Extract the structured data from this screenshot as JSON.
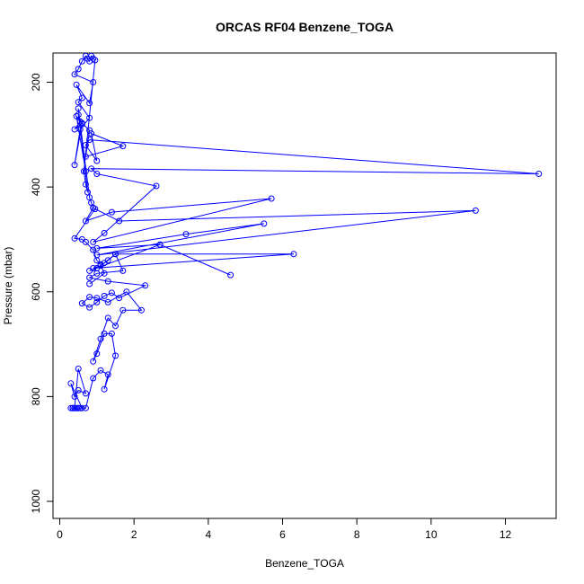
{
  "chart_data": {
    "type": "line",
    "title": "ORCAS RF04 Benzene_TOGA",
    "xlabel": "Benzene_TOGA",
    "ylabel": "Pressure (mbar)",
    "xlim": [
      0,
      13
    ],
    "ylim": [
      150,
      1030
    ],
    "y_reversed": true,
    "xticks": [
      0,
      2,
      4,
      6,
      8,
      10,
      12
    ],
    "yticks": [
      200,
      400,
      600,
      800,
      1000
    ],
    "grid": false,
    "color": "#0000ff",
    "series": [
      {
        "x": [
          0.3,
          0.35,
          0.4,
          0.45,
          0.5,
          0.55,
          0.6,
          0.3,
          0.4,
          0.5,
          0.7,
          0.5,
          0.4,
          0.35,
          0.5,
          0.7,
          0.9,
          1.1,
          1.3,
          1.2,
          1.5,
          1.4,
          1.2,
          1.0,
          0.9,
          1.1,
          1.3,
          1.5,
          1.7,
          2.2,
          1.8,
          1.3,
          1.0,
          0.8,
          0.6,
          0.8,
          1.0,
          1.2,
          1.4,
          1.6,
          2.3,
          1.3,
          0.8,
          1.0,
          1.7,
          1.5,
          1.3,
          1.1,
          0.9,
          6.3,
          1.5,
          1.2,
          1.0,
          0.8,
          2.7,
          4.6,
          2.7,
          1.0,
          3.4,
          5.5,
          1.0,
          11.2,
          1.6,
          0.9,
          0.7,
          1.4,
          5.7,
          0.9,
          1.2,
          2.6,
          1.0,
          0.85,
          12.9,
          0.8,
          0.7,
          1.0,
          0.85,
          1.7,
          0.7,
          0.8,
          0.6,
          0.4,
          0.55,
          0.45,
          0.7,
          0.5,
          0.6,
          0.4,
          0.55,
          0.8,
          0.5,
          0.6,
          0.45,
          0.8,
          0.9,
          0.4,
          0.5,
          0.6,
          0.7,
          0.75,
          0.8,
          0.85,
          0.9,
          0.95,
          0.65,
          0.7,
          0.75,
          0.5,
          0.8,
          0.85,
          0.9,
          0.95,
          0.4,
          0.6,
          0.7,
          0.9,
          1.0,
          1.1,
          1.2,
          0.8
        ],
        "y": [
          822,
          822,
          822,
          822,
          822,
          822,
          822,
          775,
          800,
          788,
          794,
          747,
          822,
          822,
          822,
          822,
          765,
          750,
          758,
          786,
          722,
          680,
          680,
          718,
          733,
          690,
          650,
          665,
          635,
          635,
          600,
          620,
          612,
          610,
          622,
          630,
          620,
          608,
          602,
          612,
          588,
          580,
          573,
          565,
          560,
          528,
          540,
          550,
          555,
          528,
          528,
          545,
          555,
          560,
          510,
          568,
          510,
          517,
          490,
          470,
          530,
          445,
          465,
          440,
          465,
          448,
          422,
          505,
          488,
          398,
          375,
          365,
          375,
          310,
          320,
          350,
          298,
          322,
          342,
          292,
          278,
          290,
          275,
          265,
          370,
          262,
          280,
          358,
          290,
          268,
          238,
          230,
          205,
          240,
          200,
          185,
          175,
          160,
          150,
          155,
          160,
          150,
          155,
          158,
          370,
          395,
          410,
          250,
          420,
          430,
          440,
          442,
          498,
          500,
          505,
          520,
          540,
          548,
          565,
          585
        ]
      }
    ]
  }
}
